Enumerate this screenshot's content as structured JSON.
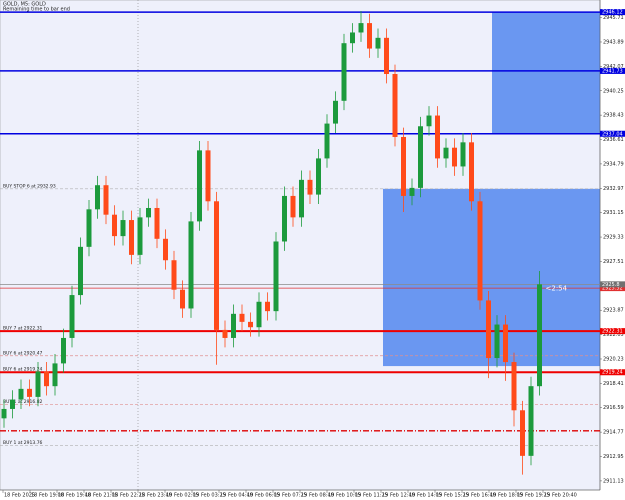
{
  "chart_data": {
    "type": "candlestick",
    "title": "GOLD, M5: GOLD",
    "subtitle": "Remaining time to bar end",
    "timer": "<2:54",
    "up_color": "#1c9a3c",
    "down_color": "#ff4a1a",
    "ylim": [
      2910.6,
      2946.8
    ],
    "yticks": [
      2911.13,
      2912.95,
      2914.77,
      2916.59,
      2918.41,
      2920.23,
      2922.05,
      2923.87,
      2925.69,
      2927.51,
      2929.33,
      2931.15,
      2932.97,
      2934.79,
      2936.61,
      2938.43,
      2940.25,
      2942.07,
      2943.89,
      2945.71
    ],
    "x_labels": [
      "18 Feb 2025",
      "18 Feb 19:00",
      "18 Feb 19:40",
      "18 Feb 21:05",
      "18 Feb 22:25",
      "18 Feb 23:40",
      "19 Feb 02:05",
      "19 Feb 03:25",
      "19 Feb 04:40",
      "19 Feb 06:05",
      "19 Feb 07:25",
      "19 Feb 08:40",
      "19 Feb 10:05",
      "19 Feb 11:25",
      "19 Feb 12:40",
      "19 Feb 14:05",
      "19 Feb 15:25",
      "19 Feb 16:40",
      "19 Feb 18:05",
      "19 Feb 19:25",
      "19 Feb 20:40"
    ],
    "open": [
      2915.8,
      2916.5,
      2917.2,
      2918.0,
      2917.4,
      2919.3,
      2918.2,
      2919.9,
      2921.8,
      2925.0,
      2928.6,
      2931.4,
      2933.2,
      2931.0,
      2929.4,
      2930.6,
      2928.0,
      2930.8,
      2931.5,
      2929.2,
      2927.6,
      2925.4,
      2924.0,
      2930.5,
      2935.8,
      2932.0,
      2922.4,
      2921.8,
      2923.6,
      2923.0,
      2922.6,
      2924.5,
      2923.8,
      2929.0,
      2932.4,
      2930.8,
      2933.6,
      2932.5,
      2935.2,
      2937.8,
      2939.5,
      2943.8,
      2944.6,
      2945.3,
      2943.4,
      2944.2,
      2941.5,
      2936.8,
      2932.4,
      2933.0,
      2937.6,
      2938.4,
      2935.2,
      2936.0,
      2934.6,
      2936.4,
      2932.0,
      2924.6,
      2920.3,
      2922.8,
      2920.0,
      2916.4,
      2913.0,
      2918.2
    ],
    "high": [
      2917.2,
      2917.9,
      2918.7,
      2918.7,
      2920.0,
      2920.0,
      2920.6,
      2922.5,
      2925.7,
      2929.3,
      2932.1,
      2933.9,
      2933.9,
      2931.7,
      2931.3,
      2931.3,
      2931.5,
      2932.2,
      2932.2,
      2929.9,
      2928.3,
      2926.1,
      2931.2,
      2936.5,
      2936.5,
      2932.7,
      2923.1,
      2924.3,
      2924.3,
      2923.7,
      2925.2,
      2925.2,
      2929.7,
      2933.1,
      2933.1,
      2934.3,
      2934.3,
      2935.9,
      2938.5,
      2940.2,
      2944.5,
      2945.3,
      2946.2,
      2946.0,
      2944.9,
      2944.9,
      2942.2,
      2937.5,
      2933.7,
      2938.3,
      2939.1,
      2939.1,
      2936.7,
      2936.7,
      2937.1,
      2937.1,
      2932.7,
      2925.3,
      2923.5,
      2923.5,
      2920.7,
      2917.1,
      2918.9,
      2926.8
    ],
    "low": [
      2915.1,
      2915.8,
      2916.5,
      2916.7,
      2916.7,
      2917.5,
      2917.5,
      2919.2,
      2921.1,
      2924.3,
      2927.9,
      2930.7,
      2930.3,
      2928.7,
      2928.7,
      2927.3,
      2927.3,
      2930.1,
      2928.5,
      2926.9,
      2924.7,
      2923.3,
      2923.3,
      2929.8,
      2931.3,
      2919.8,
      2921.1,
      2921.1,
      2922.3,
      2921.9,
      2921.9,
      2923.1,
      2923.1,
      2928.3,
      2930.1,
      2930.1,
      2931.8,
      2931.8,
      2934.5,
      2937.1,
      2938.8,
      2943.1,
      2943.9,
      2942.7,
      2942.7,
      2940.8,
      2936.1,
      2931.2,
      2931.7,
      2932.3,
      2936.9,
      2934.5,
      2934.5,
      2933.9,
      2933.9,
      2931.3,
      2923.9,
      2918.8,
      2919.6,
      2918.6,
      2915.2,
      2911.6,
      2912.3,
      2917.5
    ],
    "close": [
      2916.5,
      2917.2,
      2918.0,
      2917.4,
      2919.3,
      2918.2,
      2919.9,
      2921.8,
      2925.0,
      2928.6,
      2931.4,
      2933.2,
      2931.0,
      2929.4,
      2930.6,
      2928.0,
      2930.8,
      2931.5,
      2929.2,
      2927.6,
      2925.4,
      2924.0,
      2930.5,
      2935.8,
      2932.0,
      2922.4,
      2921.8,
      2923.6,
      2923.0,
      2922.6,
      2924.5,
      2923.8,
      2929.0,
      2932.4,
      2930.8,
      2933.6,
      2932.5,
      2935.2,
      2937.8,
      2939.5,
      2943.8,
      2944.6,
      2945.3,
      2943.4,
      2944.2,
      2941.5,
      2936.8,
      2932.4,
      2933.0,
      2937.6,
      2938.4,
      2935.2,
      2936.0,
      2934.6,
      2936.4,
      2932.0,
      2924.6,
      2920.3,
      2922.8,
      2920.0,
      2916.4,
      2913.0,
      2918.2,
      2925.8
    ],
    "zones": [
      {
        "from": 2937.04,
        "to": 2946.12,
        "color": "#5b8def"
      },
      {
        "from": 2919.7,
        "to": 2932.93,
        "color": "#5b8def"
      }
    ],
    "price_line": 2925.8,
    "levels": [
      {
        "price": 2946.12,
        "color": "#0000e0",
        "dash": "solid",
        "width": 1.5
      },
      {
        "price": 2941.73,
        "color": "#0000e0",
        "dash": "solid",
        "width": 1.5
      },
      {
        "price": 2937.04,
        "color": "#0000e0",
        "dash": "solid",
        "width": 1.5
      },
      {
        "price": 2932.93,
        "color": "#b0b0b0",
        "dash": "dash",
        "width": 0.7,
        "label": "BUY STOP 6 at 2932.93"
      },
      {
        "price": 2925.52,
        "color": "#e03030",
        "dash": "solid",
        "width": 0.7
      },
      {
        "price": 2922.31,
        "color": "#ee0000",
        "dash": "solid",
        "width": 2,
        "label": "BUY 7 at 2922.31"
      },
      {
        "price": 2920.47,
        "color": "#e09090",
        "dash": "dash",
        "width": 0.7,
        "label": "BUY 6 at 2920.47"
      },
      {
        "price": 2919.24,
        "color": "#ee0000",
        "dash": "solid",
        "width": 2,
        "label": "BUY 6 at 2919.24"
      },
      {
        "price": 2916.82,
        "color": "#e09090",
        "dash": "dash",
        "width": 0.7,
        "label": "BUY 1 at 2916.82"
      },
      {
        "price": 2914.87,
        "color": "#dd0000",
        "dash": "dashdot",
        "width": 1.3
      },
      {
        "price": 2913.76,
        "color": "#b0b0b0",
        "dash": "dash",
        "width": 0.7,
        "label": "BUY 1 at 2913.76"
      }
    ]
  }
}
